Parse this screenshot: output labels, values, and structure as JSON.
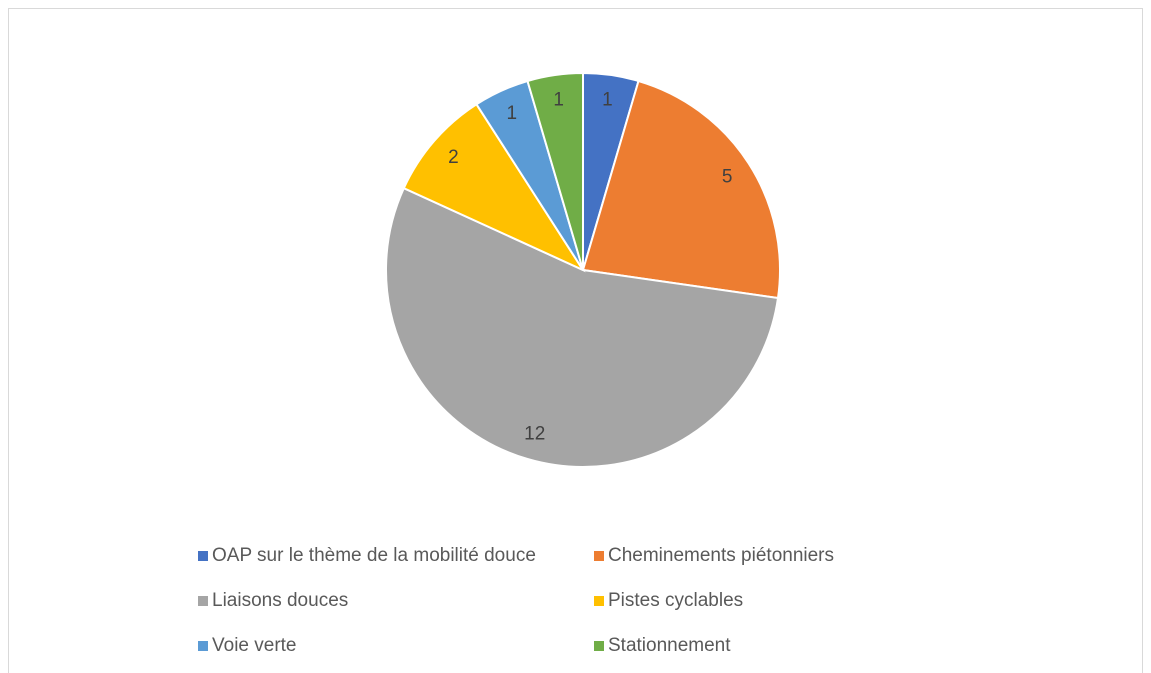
{
  "chart_data": {
    "type": "pie",
    "categories": [
      "OAP sur le thème de la mobilité douce",
      "Cheminements piétonniers",
      "Liaisons douces",
      "Pistes cyclables",
      "Voie verte",
      "Stationnement"
    ],
    "values": [
      1,
      5,
      12,
      2,
      1,
      1
    ],
    "colors": [
      "#4472c4",
      "#ed7d31",
      "#a5a5a5",
      "#ffc000",
      "#5b9bd5",
      "#70ad47"
    ],
    "legend": "bottom"
  }
}
